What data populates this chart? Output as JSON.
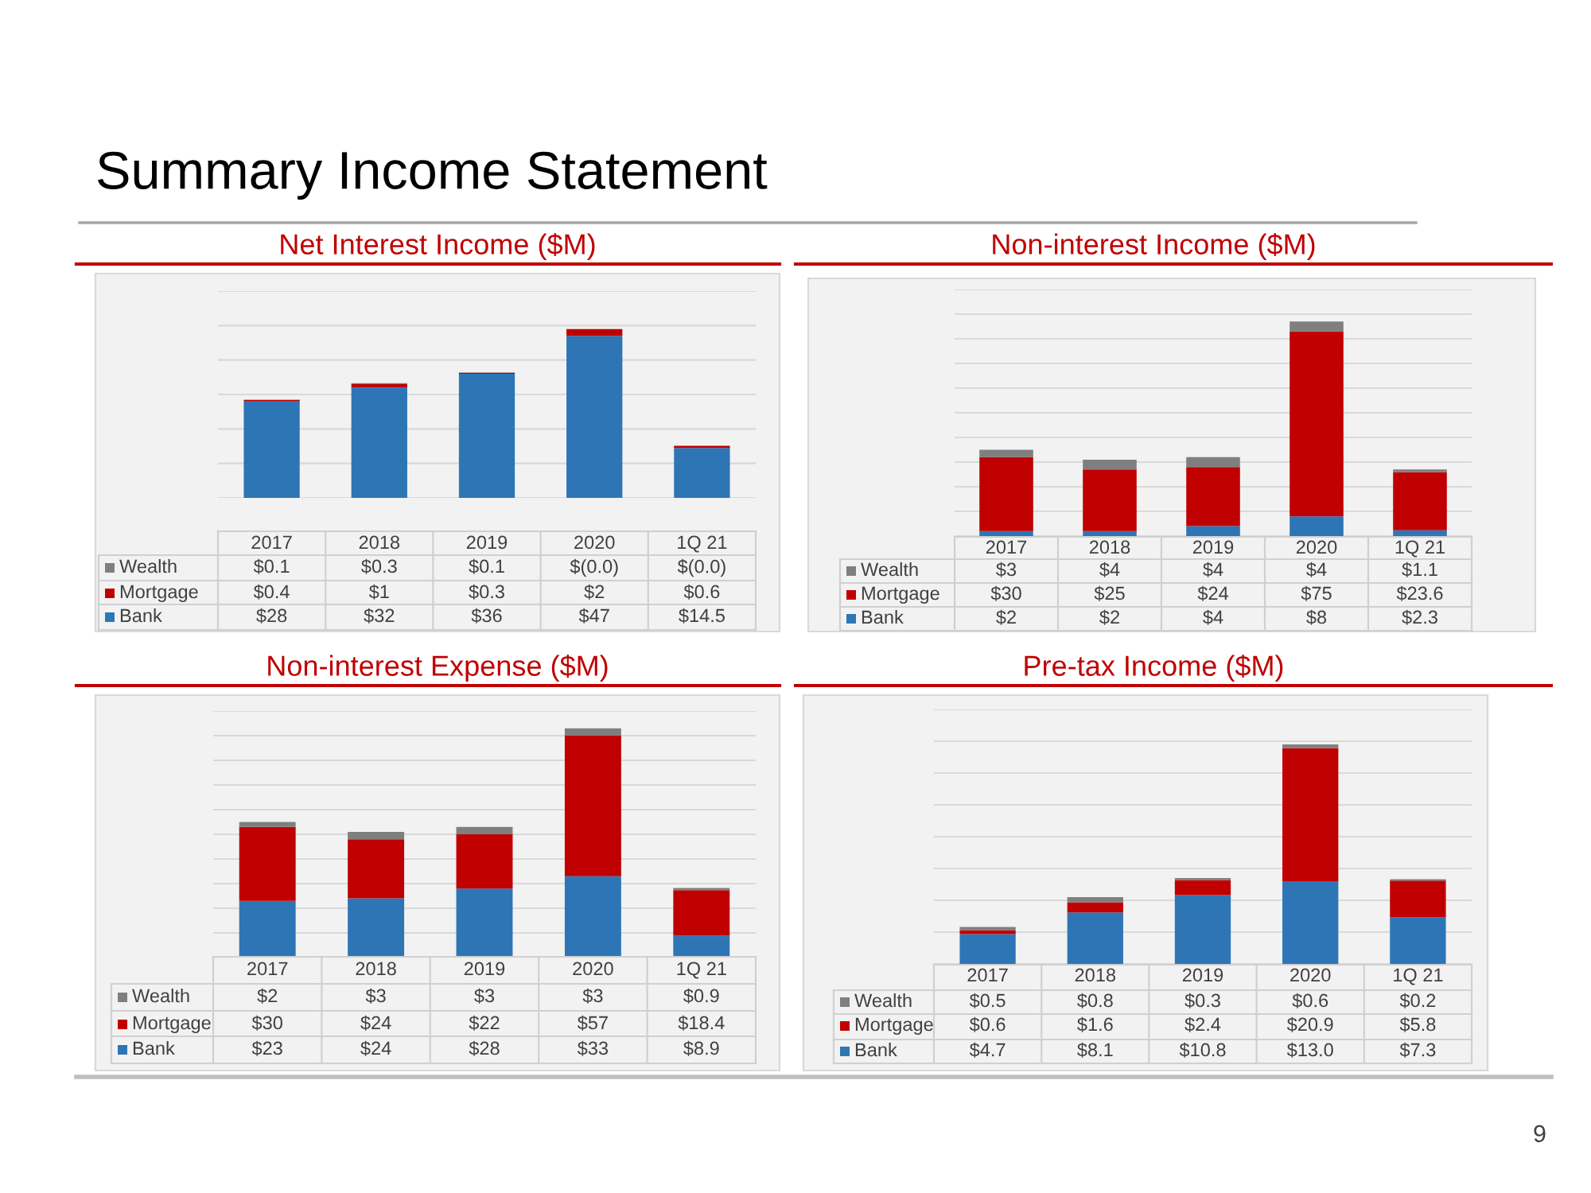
{
  "chart_data": [
    {
      "type": "bar",
      "title": "Net Interest Income ($M)",
      "annotations": [
        "Summary Income Statement"
      ],
      "categories": [
        "2017",
        "2018",
        "2019",
        "2020",
        "1Q 21"
      ],
      "stacked": true,
      "grid": "y",
      "legend": "bottom left",
      "tick_labels": "x",
      "ylim": [
        0,
        60
      ],
      "yticks": [
        {
          "value": 0,
          "label": null
        },
        {
          "value": 10,
          "label": null
        },
        {
          "value": 20,
          "label": null
        },
        {
          "value": 30,
          "label": null
        },
        {
          "value": 40,
          "label": null
        },
        {
          "value": 50,
          "label": null
        },
        {
          "value": 60,
          "label": null
        }
      ],
      "series": [
        {
          "name": "Bank",
          "color": "#2e75b6",
          "values": [
            28,
            32,
            36,
            47,
            14.5
          ],
          "value_labels": [
            "$28",
            "$32",
            "$36",
            "$47",
            "$14.5"
          ]
        },
        {
          "name": "Mortgage",
          "color": "#c00000",
          "values": [
            0.4,
            1,
            0.3,
            2,
            0.6
          ],
          "value_labels": [
            "$0.4",
            "$1",
            "$0.3",
            "$2",
            "$0.6"
          ]
        },
        {
          "name": "Wealth",
          "color": "#7f7f7f",
          "values": [
            0.1,
            0.3,
            0.1,
            0,
            0
          ],
          "value_labels": [
            "$0.1",
            "$0.3",
            "$0.1",
            "$(0.0)",
            "$(0.0)"
          ]
        }
      ]
    },
    {
      "type": "bar",
      "title": "Non-interest Income ($M)",
      "categories": [
        "2017",
        "2018",
        "2019",
        "2020",
        "1Q 21"
      ],
      "stacked": true,
      "grid": "y",
      "legend": "bottom left",
      "tick_labels": "x",
      "ylim": [
        0,
        100
      ],
      "yticks": [
        {
          "value": 0,
          "label": null
        },
        {
          "value": 10,
          "label": null
        },
        {
          "value": 20,
          "label": null
        },
        {
          "value": 30,
          "label": null
        },
        {
          "value": 40,
          "label": null
        },
        {
          "value": 50,
          "label": null
        },
        {
          "value": 60,
          "label": null
        },
        {
          "value": 70,
          "label": null
        },
        {
          "value": 80,
          "label": null
        },
        {
          "value": 90,
          "label": null
        },
        {
          "value": 100,
          "label": null
        }
      ],
      "series": [
        {
          "name": "Bank",
          "color": "#2e75b6",
          "values": [
            2,
            2,
            4,
            8,
            2.3
          ],
          "value_labels": [
            "$2",
            "$2",
            "$4",
            "$8",
            "$2.3"
          ]
        },
        {
          "name": "Mortgage",
          "color": "#c00000",
          "values": [
            30,
            25,
            24,
            75,
            23.6
          ],
          "value_labels": [
            "$30",
            "$25",
            "$24",
            "$75",
            "$23.6"
          ]
        },
        {
          "name": "Wealth",
          "color": "#7f7f7f",
          "values": [
            3,
            4,
            4,
            4,
            1.1
          ],
          "value_labels": [
            "$3",
            "$4",
            "$4",
            "$4",
            "$1.1"
          ]
        }
      ]
    },
    {
      "type": "bar",
      "title": "Non-interest Expense ($M)",
      "categories": [
        "2017",
        "2018",
        "2019",
        "2020",
        "1Q 21"
      ],
      "stacked": true,
      "grid": "y",
      "legend": "bottom left",
      "tick_labels": "x",
      "ylim": [
        0,
        100
      ],
      "yticks": [
        {
          "value": 0,
          "label": null
        },
        {
          "value": 10,
          "label": null
        },
        {
          "value": 20,
          "label": null
        },
        {
          "value": 30,
          "label": null
        },
        {
          "value": 40,
          "label": null
        },
        {
          "value": 50,
          "label": null
        },
        {
          "value": 60,
          "label": null
        },
        {
          "value": 70,
          "label": null
        },
        {
          "value": 80,
          "label": null
        },
        {
          "value": 90,
          "label": null
        },
        {
          "value": 100,
          "label": null
        }
      ],
      "series": [
        {
          "name": "Bank",
          "color": "#2e75b6",
          "values": [
            23,
            24,
            28,
            33,
            8.9
          ],
          "value_labels": [
            "$23",
            "$24",
            "$28",
            "$33",
            "$8.9"
          ]
        },
        {
          "name": "Mortgage",
          "color": "#c00000",
          "values": [
            30,
            24,
            22,
            57,
            18.4
          ],
          "value_labels": [
            "$30",
            "$24",
            "$22",
            "$57",
            "$18.4"
          ]
        },
        {
          "name": "Wealth",
          "color": "#7f7f7f",
          "values": [
            2,
            3,
            3,
            3,
            0.9
          ],
          "value_labels": [
            "$2",
            "$3",
            "$3",
            "$3",
            "$0.9"
          ]
        }
      ]
    },
    {
      "type": "bar",
      "title": "Pre-tax Income ($M)",
      "annotations": [
        "9"
      ],
      "categories": [
        "2017",
        "2018",
        "2019",
        "2020",
        "1Q 21"
      ],
      "stacked": true,
      "grid": "y",
      "legend": "bottom left",
      "tick_labels": "x",
      "ylim": [
        0,
        40
      ],
      "yticks": [
        {
          "value": 0,
          "label": null
        },
        {
          "value": 5,
          "label": null
        },
        {
          "value": 10,
          "label": null
        },
        {
          "value": 15,
          "label": null
        },
        {
          "value": 20,
          "label": null
        },
        {
          "value": 25,
          "label": null
        },
        {
          "value": 30,
          "label": null
        },
        {
          "value": 35,
          "label": null
        },
        {
          "value": 40,
          "label": null
        }
      ],
      "series": [
        {
          "name": "Bank",
          "color": "#2e75b6",
          "values": [
            4.7,
            8.1,
            10.8,
            13.0,
            7.3
          ],
          "value_labels": [
            "$4.7",
            "$8.1",
            "$10.8",
            "$13.0",
            "$7.3"
          ]
        },
        {
          "name": "Mortgage",
          "color": "#c00000",
          "values": [
            0.6,
            1.6,
            2.4,
            20.9,
            5.8
          ],
          "value_labels": [
            "$0.6",
            "$1.6",
            "$2.4",
            "$20.9",
            "$5.8"
          ]
        },
        {
          "name": "Wealth",
          "color": "#7f7f7f",
          "values": [
            0.5,
            0.8,
            0.3,
            0.6,
            0.2
          ],
          "value_labels": [
            "$0.5",
            "$0.8",
            "$0.3",
            "$0.6",
            "$0.2"
          ]
        }
      ]
    }
  ]
}
